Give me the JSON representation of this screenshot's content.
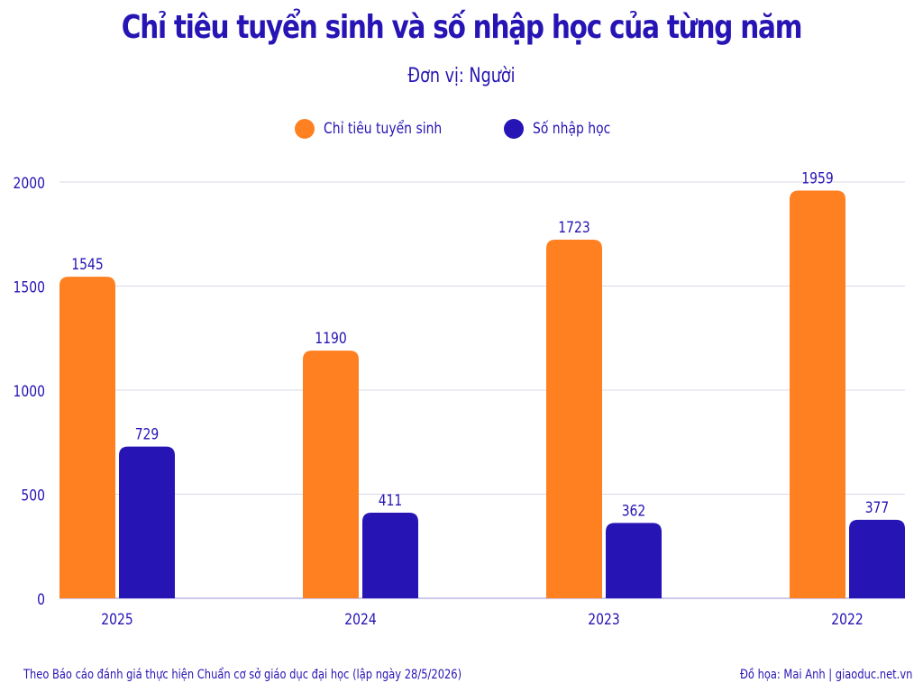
{
  "chart_data": {
    "type": "bar",
    "title": "Chỉ tiêu tuyển sinh và số nhập học của từng năm",
    "subtitle": "Đơn vị: Người",
    "categories": [
      "2025",
      "2024",
      "2023",
      "2022"
    ],
    "series": [
      {
        "name": "Chỉ tiêu tuyển sinh",
        "values": [
          1545,
          1190,
          1723,
          1959
        ],
        "color": "#ff8021"
      },
      {
        "name": "Số nhập học",
        "values": [
          729,
          411,
          362,
          377
        ],
        "color": "#2614b4"
      }
    ],
    "ylim": [
      0,
      2000
    ],
    "yticks": [
      "0",
      "500",
      "1000",
      "1500",
      "2000"
    ],
    "grid": true,
    "legend": "top-center",
    "xlabel": "",
    "ylabel": ""
  },
  "footer": {
    "source": "Theo Báo cáo đánh giá thực hiện Chuẩn cơ sở giáo dục đại học (lập ngày 28/5/2026)",
    "credit": "Đồ họa: Mai Anh | giaoduc.net.vn"
  },
  "colors": {
    "text": "#2614b4",
    "grid": "#d8d8ea"
  }
}
